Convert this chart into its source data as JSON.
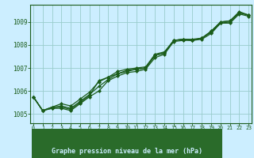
{
  "background_color": "#cceeff",
  "grid_color": "#99cccc",
  "line_color": "#1a5c1a",
  "marker": "D",
  "markersize": 2.0,
  "linewidth": 0.9,
  "xlabel": "Graphe pression niveau de la mer (hPa)",
  "xlabel_bg": "#2a6b2a",
  "xlabel_fg": "#cceeff",
  "xlim": [
    -0.3,
    23.3
  ],
  "ylim": [
    1004.6,
    1009.75
  ],
  "xticks": [
    0,
    1,
    2,
    3,
    4,
    5,
    6,
    7,
    8,
    9,
    10,
    11,
    12,
    13,
    14,
    15,
    16,
    17,
    18,
    19,
    20,
    21,
    22,
    23
  ],
  "yticks": [
    1005,
    1006,
    1007,
    1008,
    1009
  ],
  "series": [
    [
      1005.75,
      1005.15,
      1005.25,
      1005.25,
      1005.15,
      1005.45,
      1005.75,
      1006.0,
      1006.45,
      1006.65,
      1006.8,
      1006.85,
      1006.95,
      1007.45,
      1007.6,
      1008.15,
      1008.2,
      1008.2,
      1008.25,
      1008.5,
      1008.95,
      1008.95,
      1009.35,
      1009.25
    ],
    [
      1005.75,
      1005.15,
      1005.3,
      1005.35,
      1005.25,
      1005.55,
      1005.85,
      1006.2,
      1006.5,
      1006.75,
      1006.85,
      1006.95,
      1007.0,
      1007.55,
      1007.65,
      1008.2,
      1008.25,
      1008.2,
      1008.3,
      1008.6,
      1009.0,
      1009.05,
      1009.4,
      1009.3
    ],
    [
      1005.75,
      1005.15,
      1005.3,
      1005.45,
      1005.35,
      1005.65,
      1005.95,
      1006.4,
      1006.6,
      1006.85,
      1006.95,
      1007.0,
      1007.05,
      1007.6,
      1007.7,
      1008.2,
      1008.25,
      1008.25,
      1008.3,
      1008.6,
      1009.0,
      1009.05,
      1009.45,
      1009.3
    ],
    [
      1005.75,
      1005.15,
      1005.25,
      1005.3,
      1005.2,
      1005.5,
      1005.8,
      1006.45,
      1006.6,
      1006.75,
      1006.9,
      1006.95,
      1007.0,
      1007.55,
      1007.65,
      1008.2,
      1008.25,
      1008.2,
      1008.3,
      1008.55,
      1008.95,
      1009.0,
      1009.4,
      1009.3
    ]
  ]
}
